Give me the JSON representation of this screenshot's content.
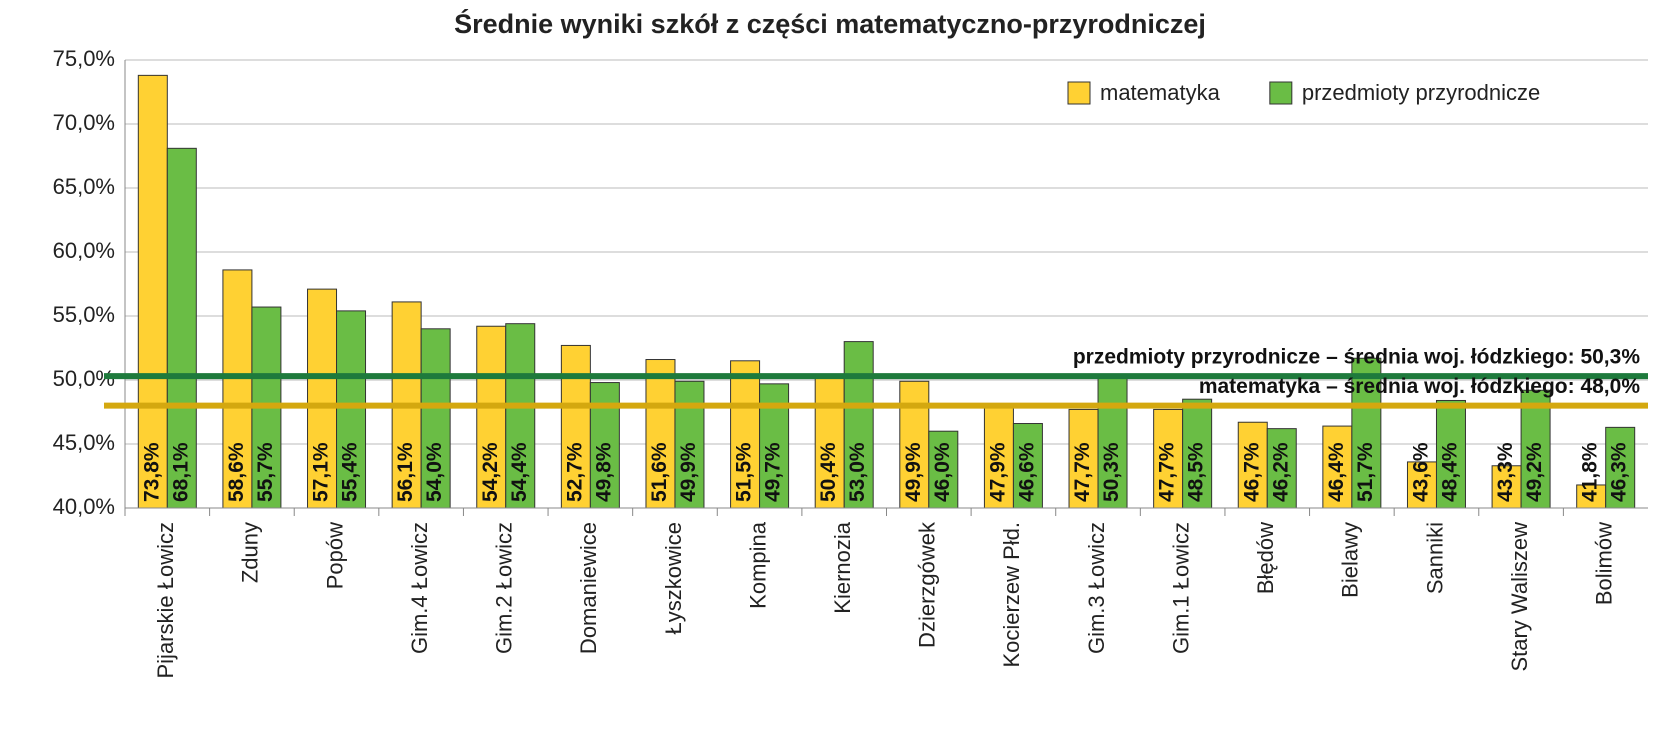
{
  "chart_data": {
    "type": "bar",
    "title": "Średnie wyniki szkół z części matematyczno-przyrodniczej",
    "categories": [
      "Pijarskie Łowicz",
      "Zduny",
      "Popów",
      "Gim.4 Łowicz",
      "Gim.2 Łowicz",
      "Domaniewice",
      "Łyszkowice",
      "Kompina",
      "Kiernozia",
      "Dzierzgówek",
      "Kocierzew Płd.",
      "Gim.3 Łowicz",
      "Gim.1 Łowicz",
      "Błędów",
      "Bielawy",
      "Sanniki",
      "Stary Waliszew",
      "Bolimów"
    ],
    "series": [
      {
        "name": "matematyka",
        "color": "#ffd133",
        "values": [
          73.8,
          58.6,
          57.1,
          56.1,
          54.2,
          52.7,
          51.6,
          51.5,
          50.4,
          49.9,
          47.9,
          47.7,
          47.7,
          46.7,
          46.4,
          43.6,
          43.3,
          41.8
        ],
        "value_labels": [
          "73,8%",
          "58,6%",
          "57,1%",
          "56,1%",
          "54,2%",
          "52,7%",
          "51,6%",
          "51,5%",
          "50,4%",
          "49,9%",
          "47,9%",
          "47,7%",
          "47,7%",
          "46,7%",
          "46,4%",
          "43,6%",
          "43,3%",
          "41,8%"
        ]
      },
      {
        "name": "przedmioty przyrodnicze",
        "color": "#6abd45",
        "values": [
          68.1,
          55.7,
          55.4,
          54.0,
          54.4,
          49.8,
          49.9,
          49.7,
          53.0,
          46.0,
          46.6,
          50.3,
          48.5,
          46.2,
          51.7,
          48.4,
          49.2,
          46.3
        ],
        "value_labels": [
          "68,1%",
          "55,7%",
          "55,4%",
          "54,0%",
          "54,4%",
          "49,8%",
          "49,9%",
          "49,7%",
          "53,0%",
          "46,0%",
          "46,6%",
          "50,3%",
          "48,5%",
          "46,2%",
          "51,7%",
          "48,4%",
          "49,2%",
          "46,3%"
        ]
      }
    ],
    "reference_lines": [
      {
        "label": "przedmioty przyrodnicze – średnia woj. łódzkiego: 50,3%",
        "value": 50.3,
        "color": "#1e7a3c"
      },
      {
        "label": "matematyka – średnia woj. łódzkiego: 48,0%",
        "value": 48.0,
        "color": "#d4a80f"
      }
    ],
    "ylim": [
      40,
      75
    ],
    "yticks": [
      {
        "value": 40,
        "label": "40,0%"
      },
      {
        "value": 45,
        "label": "45,0%"
      },
      {
        "value": 50,
        "label": "50,0%"
      },
      {
        "value": 55,
        "label": "55,0%"
      },
      {
        "value": 60,
        "label": "60,0%"
      },
      {
        "value": 65,
        "label": "65,0%"
      },
      {
        "value": 70,
        "label": "70,0%"
      },
      {
        "value": 75,
        "label": "75,0%"
      }
    ],
    "grid": true,
    "legend": "top-right"
  }
}
